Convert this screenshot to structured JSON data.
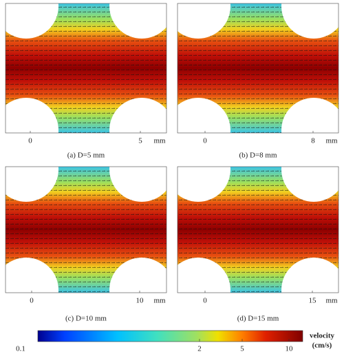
{
  "panels": [
    {
      "caption": "(a) D=5 mm",
      "ticks": [
        "0",
        "5"
      ],
      "unit": "mm"
    },
    {
      "caption": "(b) D=8 mm",
      "ticks": [
        "0",
        "8"
      ],
      "unit": "mm"
    },
    {
      "caption": "(c) D=10 mm",
      "ticks": [
        "0",
        "10"
      ],
      "unit": "mm"
    },
    {
      "caption": "(d) D=15 mm",
      "ticks": [
        "0",
        "15"
      ],
      "unit": "mm"
    }
  ],
  "colorbar": {
    "ticks": [
      "0.1",
      "2",
      "5",
      "10"
    ],
    "label": [
      "velocity",
      "(cm/s)"
    ]
  }
}
